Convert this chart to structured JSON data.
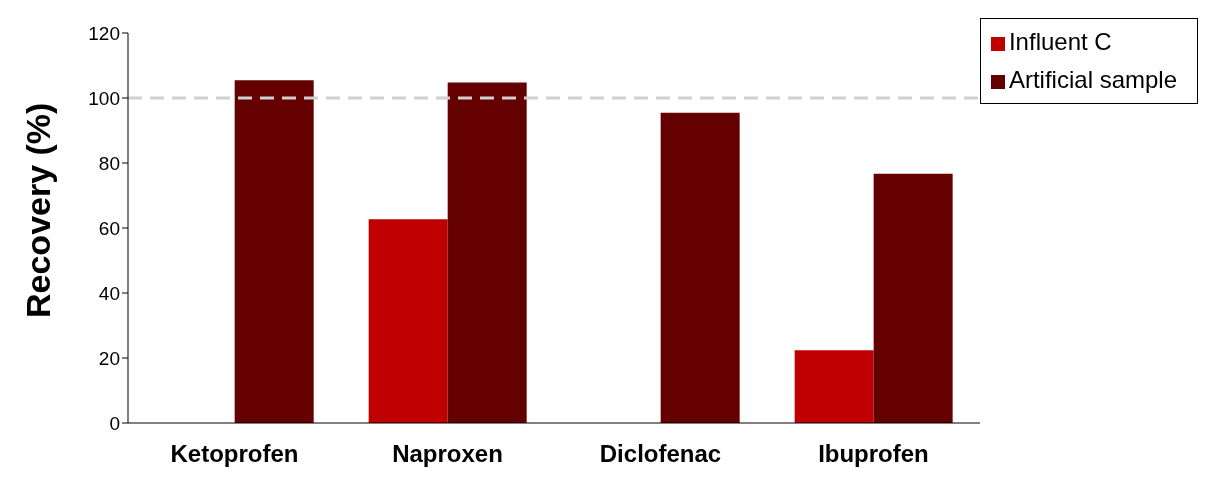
{
  "chart_data": {
    "type": "bar",
    "ylabel": "Recovery (%)",
    "categories": [
      "Ketoprofen",
      "Naproxen",
      "Diclofenac",
      "Ibuprofen"
    ],
    "series": [
      {
        "name": "Influent C",
        "color": "#c00000",
        "values": [
          null,
          62.7,
          null,
          22.4
        ]
      },
      {
        "name": "Artificial sample",
        "color": "#640000",
        "values": [
          105.5,
          104.8,
          95.5,
          76.7
        ]
      }
    ],
    "ylim": [
      0,
      120
    ],
    "yticks": [
      0,
      20,
      40,
      60,
      80,
      100,
      120
    ],
    "grid": false,
    "legend": "top right",
    "ref_lines": [
      {
        "axis": "y",
        "value": 100,
        "color": "#d0d0d0",
        "line_style": "dashed"
      }
    ]
  }
}
